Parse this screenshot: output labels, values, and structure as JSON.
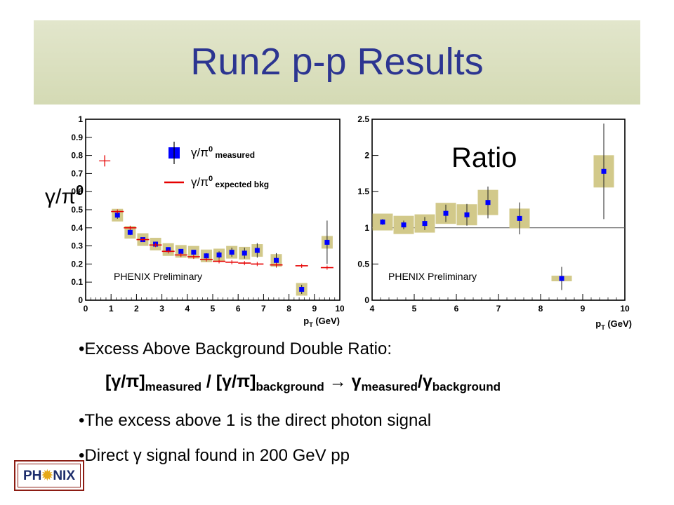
{
  "title": "Run2 p-p Results",
  "chart_data": [
    {
      "type": "scatter",
      "ylabel_symbol": "γ/π0",
      "xlabel": "pT (GeV)",
      "annotation": "PHENIX Preliminary",
      "xlim": [
        0,
        10
      ],
      "ylim": [
        0,
        1
      ],
      "xticks": [
        "0",
        "1",
        "2",
        "3",
        "4",
        "5",
        "6",
        "7",
        "8",
        "9",
        "10"
      ],
      "yticks": [
        "0",
        "0.1",
        "0.2",
        "0.3",
        "0.4",
        "0.5",
        "0.6",
        "0.7",
        "0.8",
        "0.9",
        "1"
      ],
      "legend": [
        {
          "symbol": "γ/π0",
          "label": "measured",
          "color": "#0000ff"
        },
        {
          "symbol": "γ/π0",
          "label": "expected bkg",
          "color": "#e60000"
        }
      ],
      "series": [
        {
          "name": "measured",
          "color": "#0000ff",
          "points": [
            {
              "x": 1.25,
              "y": 0.47,
              "err": 0.02
            },
            {
              "x": 1.75,
              "y": 0.375,
              "err": 0.015
            },
            {
              "x": 2.25,
              "y": 0.335,
              "err": 0.012
            },
            {
              "x": 2.75,
              "y": 0.31,
              "err": 0.01
            },
            {
              "x": 3.25,
              "y": 0.28,
              "err": 0.01
            },
            {
              "x": 3.75,
              "y": 0.27,
              "err": 0.012
            },
            {
              "x": 4.25,
              "y": 0.265,
              "err": 0.012
            },
            {
              "x": 4.75,
              "y": 0.245,
              "err": 0.015
            },
            {
              "x": 5.25,
              "y": 0.25,
              "err": 0.02
            },
            {
              "x": 5.75,
              "y": 0.265,
              "err": 0.025
            },
            {
              "x": 6.25,
              "y": 0.26,
              "err": 0.03
            },
            {
              "x": 6.75,
              "y": 0.275,
              "err": 0.04
            },
            {
              "x": 7.5,
              "y": 0.22,
              "err": 0.04
            },
            {
              "x": 8.5,
              "y": 0.06,
              "err": 0.025
            },
            {
              "x": 9.5,
              "y": 0.32,
              "err": 0.12
            }
          ]
        },
        {
          "name": "expected bkg",
          "color": "#e60000",
          "points": [
            {
              "x": 1.25,
              "y": 0.49
            },
            {
              "x": 1.75,
              "y": 0.4
            },
            {
              "x": 2.25,
              "y": 0.335
            },
            {
              "x": 2.75,
              "y": 0.305
            },
            {
              "x": 3.25,
              "y": 0.27
            },
            {
              "x": 3.75,
              "y": 0.25
            },
            {
              "x": 4.25,
              "y": 0.24
            },
            {
              "x": 4.75,
              "y": 0.225
            },
            {
              "x": 5.25,
              "y": 0.215
            },
            {
              "x": 5.75,
              "y": 0.21
            },
            {
              "x": 6.25,
              "y": 0.205
            },
            {
              "x": 6.75,
              "y": 0.2
            },
            {
              "x": 7.5,
              "y": 0.195
            },
            {
              "x": 8.5,
              "y": 0.19
            },
            {
              "x": 9.5,
              "y": 0.18
            }
          ]
        }
      ]
    },
    {
      "type": "scatter",
      "title": "Ratio",
      "xlabel": "pT (GeV)",
      "annotation": "PHENIX Preliminary",
      "xlim": [
        4,
        10
      ],
      "ylim": [
        0,
        2.5
      ],
      "xticks": [
        "4",
        "5",
        "6",
        "7",
        "8",
        "9",
        "10"
      ],
      "yticks": [
        "0",
        "0.5",
        "1",
        "1.5",
        "2",
        "2.5"
      ],
      "reference_line_y": 1,
      "series": [
        {
          "name": "double ratio",
          "color": "#0000ff",
          "points": [
            {
              "x": 4.25,
              "y": 1.08,
              "err": 0.04
            },
            {
              "x": 4.75,
              "y": 1.04,
              "err": 0.06
            },
            {
              "x": 5.25,
              "y": 1.06,
              "err": 0.09
            },
            {
              "x": 5.75,
              "y": 1.2,
              "err": 0.12
            },
            {
              "x": 6.25,
              "y": 1.18,
              "err": 0.15
            },
            {
              "x": 6.75,
              "y": 1.35,
              "err": 0.22
            },
            {
              "x": 7.5,
              "y": 1.13,
              "err": 0.22
            },
            {
              "x": 8.5,
              "y": 0.3,
              "err": 0.16
            },
            {
              "x": 9.5,
              "y": 1.78,
              "err": 0.66
            }
          ]
        }
      ]
    }
  ],
  "bullets": {
    "b1": "•Excess Above Background Double Ratio:",
    "b2": "•The excess above 1 is the direct photon signal",
    "b3a": "•Direct ",
    "b3sym": "γ",
    "b3b": " signal found in 200 GeV  pp"
  },
  "formula": {
    "p1": "[γ/π]",
    "s1": "measured",
    "p2": " / [γ/π]",
    "s2": "background",
    "arrow": "  →  γ",
    "s3": "measured",
    "p3": "/γ",
    "s4": "background"
  },
  "logo": {
    "left": "PH",
    "star": "✹",
    "right": "NIX"
  },
  "colors": {
    "title": "#2c3591",
    "box": "#d2c98a",
    "measured": "#0000ff",
    "bkg": "#e60000"
  }
}
